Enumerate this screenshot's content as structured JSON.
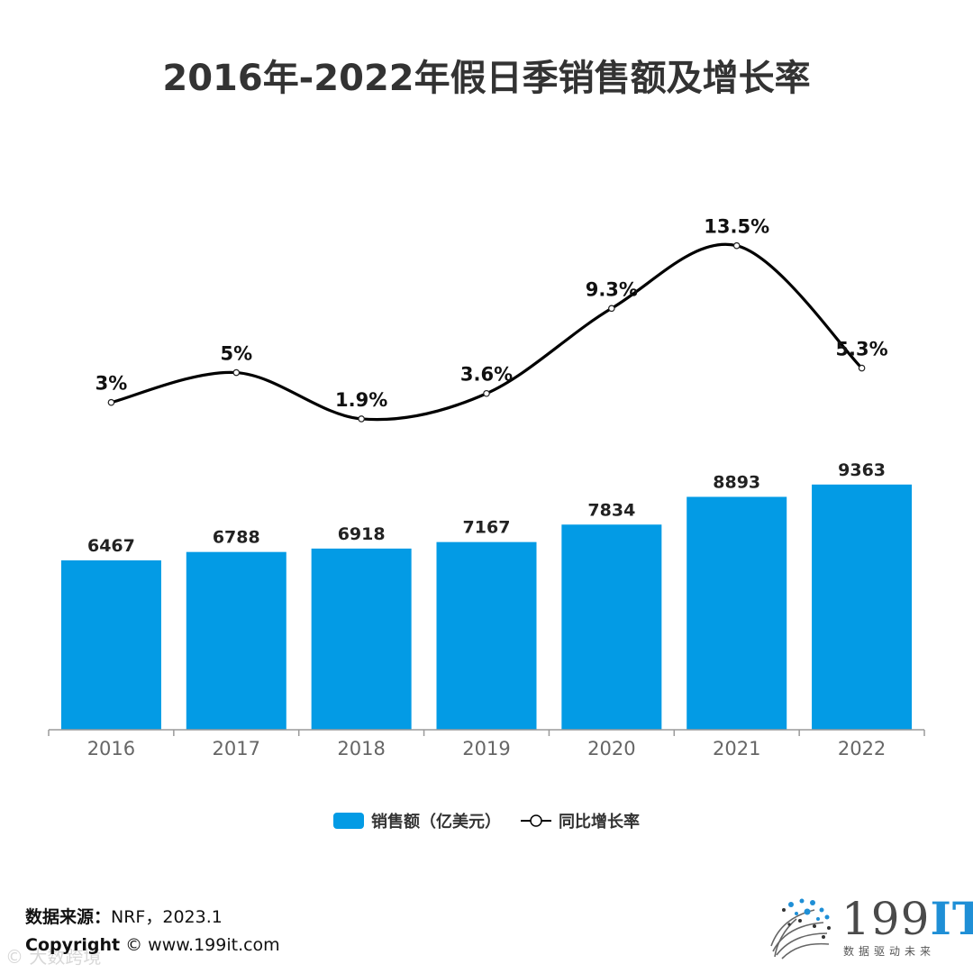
{
  "title": "2016年-2022年假日季销售额及增长率",
  "chart_data": {
    "type": "bar+line",
    "categories": [
      "2016",
      "2017",
      "2018",
      "2019",
      "2020",
      "2021",
      "2022"
    ],
    "series": [
      {
        "name": "销售额（亿美元）",
        "type": "bar",
        "values": [
          6467,
          6788,
          6918,
          7167,
          7834,
          8893,
          9363
        ],
        "labels": [
          "6467",
          "6788",
          "6918",
          "7167",
          "7834",
          "8893",
          "9363"
        ],
        "color": "#039be5"
      },
      {
        "name": "同比增长率",
        "type": "line",
        "values": [
          3,
          5,
          1.9,
          3.6,
          9.3,
          13.5,
          5.3
        ],
        "labels": [
          "3%",
          "5%",
          "1.9%",
          "3.6%",
          "9.3%",
          "13.5%",
          "5.3%"
        ],
        "color": "#000000",
        "smooth": true
      }
    ],
    "legend_position": "bottom-center"
  },
  "legend": {
    "bar_label": "销售额（亿美元）",
    "line_label": "同比增长率"
  },
  "footer": {
    "source_label": "数据来源：",
    "source_value": "NRF，2023.1",
    "copyright_label": "Copyright",
    "copyright_value": "© www.199it.com",
    "watermark": "© 大数跨境"
  },
  "logo": {
    "number": "199",
    "suffix": "IT",
    "tagline": "数据驱动未来",
    "brand_color": "#1f8fd6"
  }
}
